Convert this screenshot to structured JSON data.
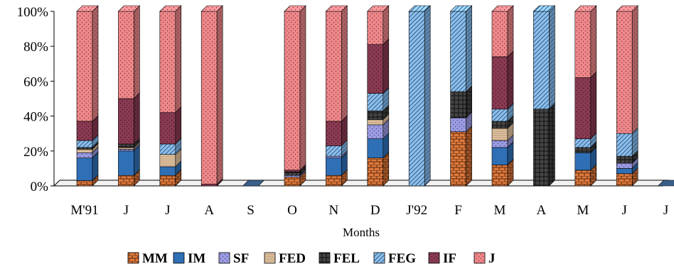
{
  "chart_data": {
    "type": "bar",
    "stacked": "percent",
    "xlabel": "Months",
    "ylabel": "",
    "ylim": [
      0,
      100
    ],
    "yticks": [
      "0%",
      "20%",
      "40%",
      "60%",
      "80%",
      "100%"
    ],
    "legend_position": "bottom",
    "categories": [
      "M'91",
      "J",
      "J",
      "A",
      "S",
      "O",
      "N",
      "D",
      "J'92",
      "F",
      "M",
      "A",
      "M",
      "J",
      "J"
    ],
    "series": [
      {
        "name": "MM",
        "color": "#e07a3c",
        "pattern": "brick",
        "values": [
          3,
          6,
          6,
          0,
          0,
          5,
          6,
          16,
          0,
          31,
          12,
          0,
          9,
          7,
          0
        ]
      },
      {
        "name": "IM",
        "color": "#2f6fb5",
        "pattern": "solid",
        "values": [
          13,
          14,
          5,
          0,
          0,
          0,
          10,
          11,
          0,
          0,
          10,
          0,
          10,
          3,
          0
        ]
      },
      {
        "name": "SF",
        "color": "#9c9ce6",
        "pattern": "dots",
        "values": [
          3,
          1,
          0,
          0,
          0,
          1,
          1,
          8,
          0,
          8,
          4,
          0,
          0,
          3,
          0
        ]
      },
      {
        "name": "FED",
        "color": "#e6c9a8",
        "pattern": "hlines",
        "values": [
          2,
          1,
          7,
          0,
          0,
          0,
          0,
          3,
          0,
          0,
          7,
          0,
          0,
          0,
          0
        ]
      },
      {
        "name": "FEL",
        "color": "#444444",
        "pattern": "grid",
        "values": [
          1,
          2,
          0,
          0,
          0,
          2,
          0,
          5,
          0,
          15,
          4,
          44,
          3,
          4,
          0
        ]
      },
      {
        "name": "FEG",
        "color": "#8fc0ea",
        "pattern": "diagonal",
        "values": [
          4,
          0,
          6,
          0,
          0,
          0,
          6,
          10,
          100,
          46,
          7,
          56,
          5,
          13,
          0
        ]
      },
      {
        "name": "IF",
        "color": "#8a3a52",
        "pattern": "dots",
        "values": [
          11,
          26,
          18,
          1,
          0,
          1,
          14,
          28,
          0,
          0,
          30,
          0,
          35,
          0,
          0
        ]
      },
      {
        "name": "J",
        "color": "#f0878a",
        "pattern": "dots",
        "values": [
          63,
          50,
          58,
          99,
          0,
          91,
          63,
          19,
          0,
          0,
          26,
          0,
          38,
          70,
          0
        ]
      }
    ]
  }
}
